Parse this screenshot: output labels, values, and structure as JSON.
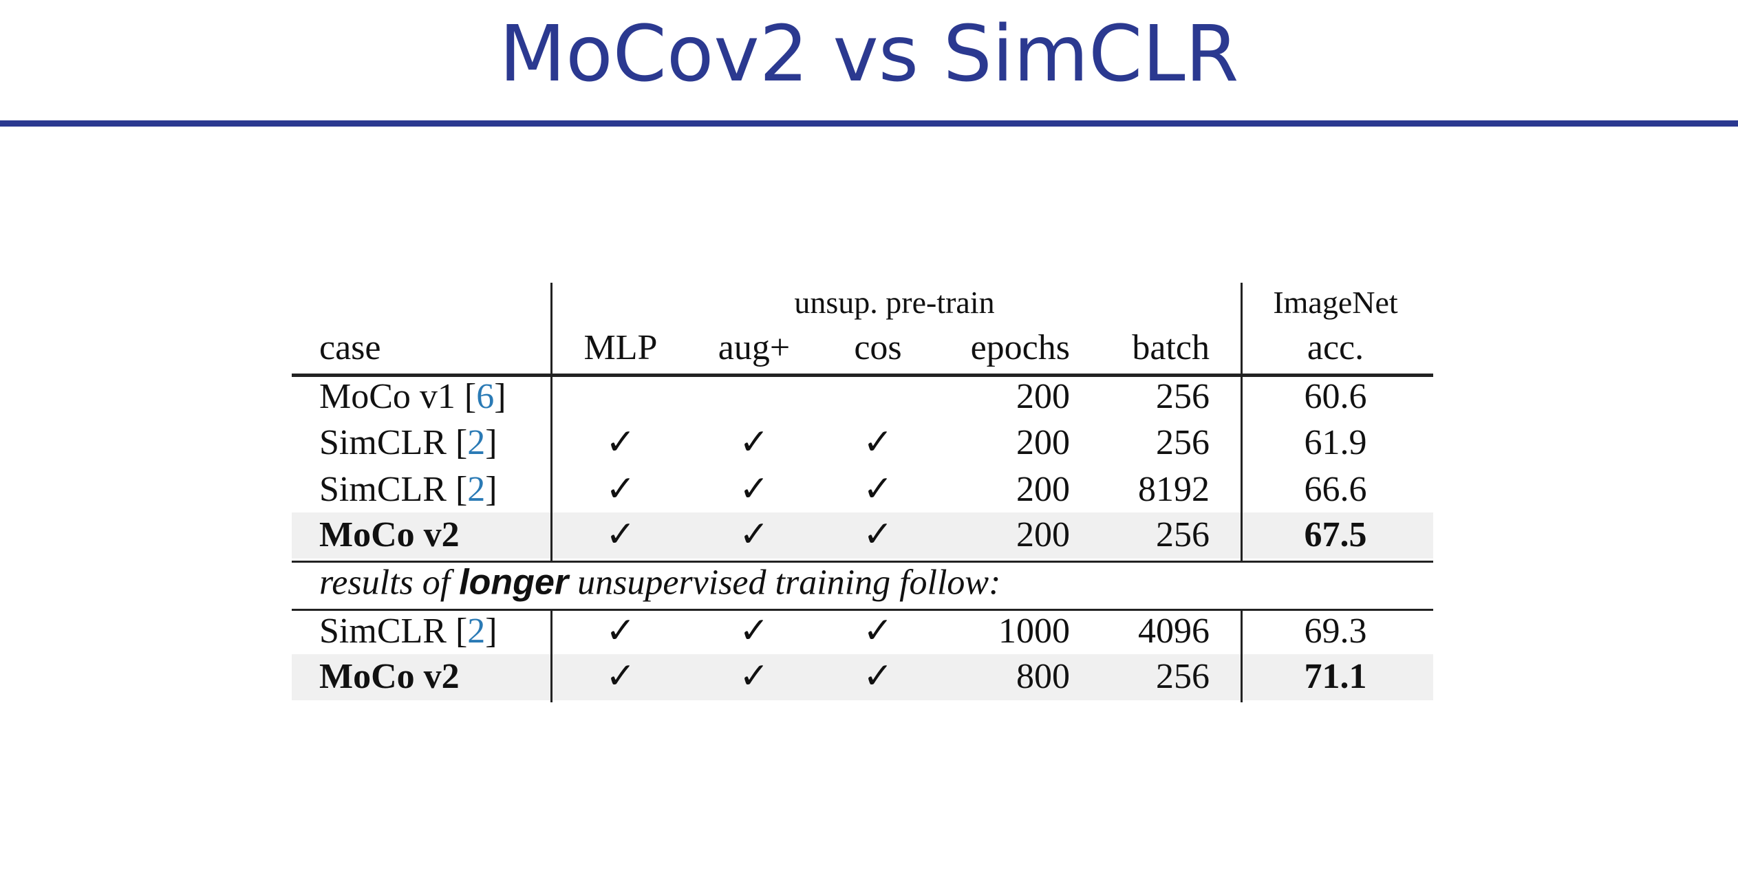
{
  "title": "MoCov2 vs SimCLR",
  "table": {
    "groups": [
      "unsup. pre-train",
      "ImageNet"
    ],
    "columns": [
      "case",
      "MLP",
      "aug+",
      "cos",
      "epochs",
      "batch",
      "acc."
    ],
    "rows": [
      {
        "case": "MoCo v1 [6]",
        "mlp": null,
        "aug": null,
        "cos": null,
        "epochs": 200,
        "batch": 256,
        "acc": 60.6,
        "highlight": false
      },
      {
        "case": "SimCLR [2]",
        "mlp": "✓",
        "aug": "✓",
        "cos": "✓",
        "epochs": 200,
        "batch": 256,
        "acc": 61.9,
        "highlight": false
      },
      {
        "case": "SimCLR [2]",
        "mlp": "✓",
        "aug": "✓",
        "cos": "✓",
        "epochs": 200,
        "batch": 8192,
        "acc": 66.6,
        "highlight": false
      },
      {
        "case": "MoCo v2",
        "mlp": "✓",
        "aug": "✓",
        "cos": "✓",
        "epochs": 200,
        "batch": 256,
        "acc": 67.5,
        "highlight": true
      },
      {
        "case": "SimCLR [2]",
        "mlp": "✓",
        "aug": "✓",
        "cos": "✓",
        "epochs": 1000,
        "batch": 4096,
        "acc": 69.3,
        "highlight": false
      },
      {
        "case": "MoCo v2",
        "mlp": "✓",
        "aug": "✓",
        "cos": "✓",
        "epochs": 800,
        "batch": 256,
        "acc": 71.1,
        "highlight": true
      }
    ],
    "note": [
      "results of ",
      "longer",
      " unsupervised training follow:"
    ]
  }
}
